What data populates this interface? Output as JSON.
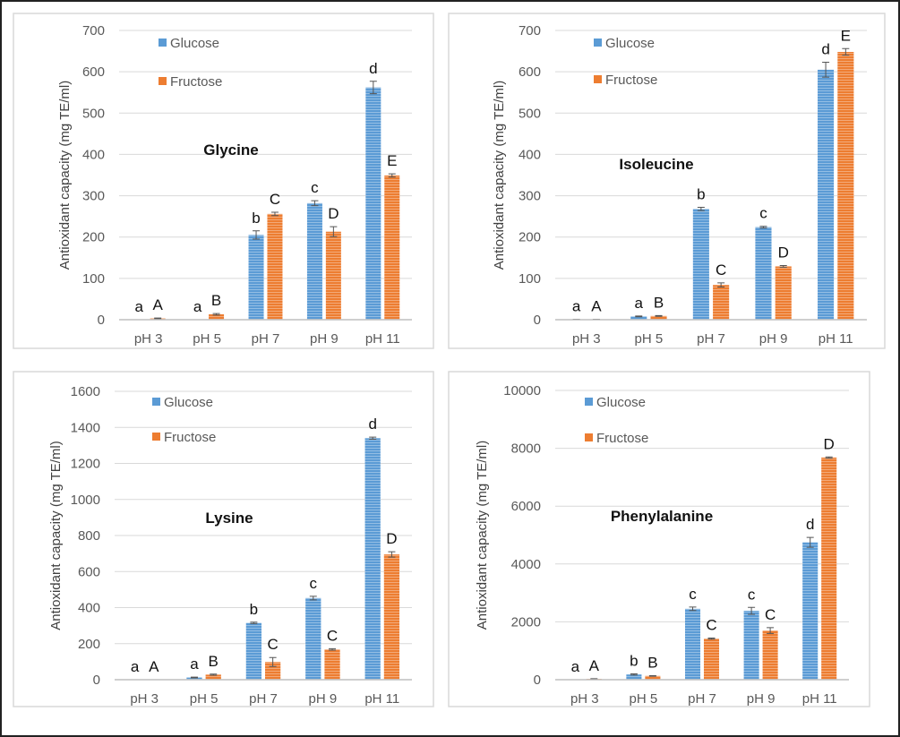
{
  "colors": {
    "glucose": "#5b9bd5",
    "fructose": "#ed7d31",
    "grid": "#d9d9d9",
    "axis": "#bfbfbf",
    "panel_border": "#d9d9d9"
  },
  "chart_data": [
    {
      "type": "bar",
      "title": "Glycine",
      "ylabel": "Antioxidant capacity (mg TE/ml)",
      "categories": [
        "pH 3",
        "pH 5",
        "pH 7",
        "pH 9",
        "pH 11"
      ],
      "ylim": [
        0,
        700
      ],
      "yticks": [
        0,
        100,
        200,
        300,
        400,
        500,
        600,
        700
      ],
      "grid": true,
      "legend": "top-left",
      "series": [
        {
          "name": "Glucose",
          "values": [
            0,
            0,
            205,
            282,
            562
          ],
          "errors": [
            0,
            0,
            10,
            6,
            15
          ],
          "letters": [
            "a",
            "a",
            "b",
            "c",
            "d"
          ]
        },
        {
          "name": "Fructose",
          "values": [
            3,
            13,
            256,
            213,
            349
          ],
          "errors": [
            1,
            2,
            4,
            12,
            4
          ],
          "letters": [
            "A",
            "B",
            "C",
            "D",
            "E"
          ]
        }
      ]
    },
    {
      "type": "bar",
      "title": "Isoleucine",
      "ylabel": "Antioxidant capacity (mg TE/ml)",
      "categories": [
        "pH 3",
        "pH 5",
        "pH 7",
        "pH 9",
        "pH 11"
      ],
      "ylim": [
        0,
        700
      ],
      "yticks": [
        0,
        100,
        200,
        300,
        400,
        500,
        600,
        700
      ],
      "grid": true,
      "legend": "top-left",
      "series": [
        {
          "name": "Glucose",
          "values": [
            1,
            8,
            268,
            224,
            605
          ],
          "errors": [
            0,
            1,
            4,
            2,
            18
          ],
          "letters": [
            "a",
            "a",
            "b",
            "c",
            "d"
          ]
        },
        {
          "name": "Fructose",
          "values": [
            1,
            9,
            84,
            129,
            648
          ],
          "errors": [
            0,
            1,
            5,
            2,
            8
          ],
          "letters": [
            "A",
            "B",
            "C",
            "D",
            "E"
          ]
        }
      ]
    },
    {
      "type": "bar",
      "title": "Lysine",
      "ylabel": "Antioxidant capacity (mg TE/ml)",
      "categories": [
        "pH 3",
        "pH 5",
        "pH 7",
        "pH 9",
        "pH 11"
      ],
      "ylim": [
        0,
        1600
      ],
      "yticks": [
        0,
        200,
        400,
        600,
        800,
        1000,
        1200,
        1400,
        1600
      ],
      "grid": true,
      "legend": "top-left",
      "series": [
        {
          "name": "Glucose",
          "values": [
            0,
            12,
            315,
            453,
            1340
          ],
          "errors": [
            0,
            2,
            4,
            10,
            6
          ],
          "letters": [
            "a",
            "a",
            "b",
            "c",
            "d"
          ]
        },
        {
          "name": "Fructose",
          "values": [
            0,
            28,
            98,
            168,
            695
          ],
          "errors": [
            0,
            3,
            25,
            4,
            15
          ],
          "letters": [
            "A",
            "B",
            "C",
            "C",
            "D"
          ]
        }
      ]
    },
    {
      "type": "bar",
      "title": "Phenylalanine",
      "ylabel": "Antioxidant capacity (mg TE/ml)",
      "categories": [
        "pH 3",
        "pH 5",
        "pH 7",
        "pH 9",
        "pH 11"
      ],
      "ylim": [
        0,
        10000
      ],
      "yticks": [
        0,
        2000,
        4000,
        6000,
        8000,
        10000
      ],
      "grid": true,
      "legend": "top-left",
      "series": [
        {
          "name": "Glucose",
          "values": [
            0,
            180,
            2450,
            2380,
            4750
          ],
          "errors": [
            0,
            20,
            60,
            120,
            170
          ],
          "letters": [
            "a",
            "b",
            "c",
            "c",
            "d"
          ]
        },
        {
          "name": "Fructose",
          "values": [
            30,
            130,
            1420,
            1700,
            7680
          ],
          "errors": [
            5,
            10,
            20,
            100,
            20
          ],
          "letters": [
            "A",
            "B",
            "C",
            "C",
            "D"
          ]
        }
      ]
    }
  ]
}
